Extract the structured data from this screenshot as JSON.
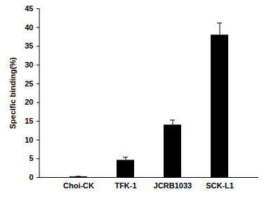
{
  "chart_data": {
    "type": "bar",
    "categories": [
      "Choi-CK",
      "TFK-1",
      "JCRB1033",
      "SCK-L1"
    ],
    "values": [
      0.2,
      4.6,
      14,
      38
    ],
    "errors": [
      0.1,
      0.8,
      1.3,
      3.2
    ],
    "color": "#000000",
    "ylabel": "Specific binding(%)",
    "ylim": [
      0,
      45
    ],
    "yticks": [
      0,
      5,
      10,
      15,
      20,
      25,
      30,
      35,
      40,
      45
    ],
    "grid": false
  }
}
